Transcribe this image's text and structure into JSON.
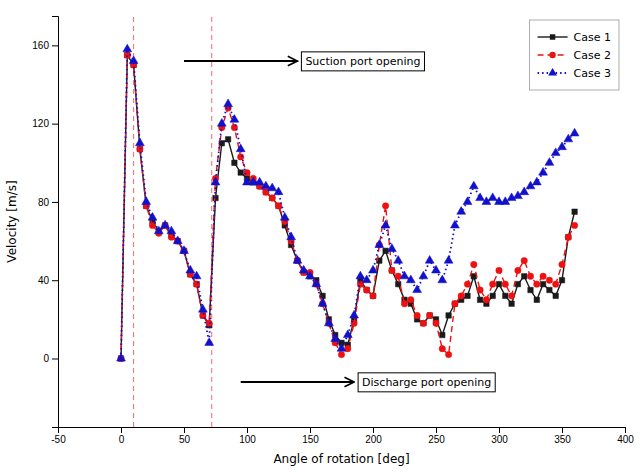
{
  "chart_data": {
    "type": "line",
    "x": [
      0,
      5,
      10,
      15,
      20,
      25,
      30,
      35,
      40,
      45,
      50,
      55,
      60,
      65,
      70,
      75,
      80,
      85,
      90,
      95,
      100,
      105,
      110,
      115,
      120,
      125,
      130,
      135,
      140,
      145,
      150,
      155,
      160,
      165,
      170,
      175,
      180,
      185,
      190,
      195,
      200,
      205,
      210,
      215,
      220,
      225,
      230,
      235,
      240,
      245,
      250,
      255,
      260,
      265,
      270,
      275,
      280,
      285,
      290,
      295,
      300,
      305,
      310,
      315,
      320,
      325,
      330,
      335,
      340,
      345,
      350,
      355,
      360
    ],
    "series": [
      {
        "name": "Case 1",
        "color": "#1a1a1a",
        "line_style": "solid",
        "marker": "square",
        "values": [
          0,
          155,
          150,
          107,
          78,
          70,
          65,
          68,
          63,
          60,
          55,
          43,
          38,
          22,
          17,
          82,
          110,
          112,
          100,
          95,
          92,
          90,
          88,
          85,
          82,
          78,
          68,
          58,
          50,
          44,
          42,
          40,
          32,
          20,
          12,
          8,
          7,
          20,
          40,
          35,
          32,
          50,
          55,
          45,
          38,
          30,
          28,
          20,
          18,
          22,
          20,
          12,
          22,
          28,
          30,
          32,
          42,
          30,
          28,
          32,
          38,
          32,
          28,
          38,
          42,
          35,
          30,
          38,
          35,
          32,
          40,
          62,
          75
        ]
      },
      {
        "name": "Case 2",
        "color": "#ee1111",
        "line_style": "dashed",
        "marker": "circle",
        "values": [
          0,
          155,
          150,
          107,
          78,
          68,
          64,
          68,
          62,
          60,
          55,
          43,
          38,
          22,
          18,
          92,
          118,
          128,
          118,
          103,
          95,
          92,
          88,
          85,
          82,
          78,
          70,
          60,
          50,
          44,
          44,
          38,
          28,
          18,
          8,
          2,
          5,
          18,
          38,
          35,
          32,
          58,
          78,
          45,
          42,
          28,
          30,
          22,
          18,
          22,
          18,
          5,
          2,
          28,
          32,
          38,
          48,
          35,
          30,
          38,
          45,
          38,
          32,
          45,
          50,
          42,
          38,
          42,
          40,
          38,
          48,
          62,
          68
        ]
      },
      {
        "name": "Case 3",
        "color": "#1111cc",
        "line_style": "dotted",
        "marker": "triangle",
        "values": [
          0,
          158,
          152,
          110,
          80,
          72,
          65,
          68,
          65,
          60,
          55,
          45,
          42,
          25,
          8,
          90,
          120,
          130,
          122,
          107,
          90,
          90,
          90,
          88,
          87,
          85,
          72,
          62,
          50,
          45,
          42,
          38,
          28,
          18,
          10,
          5,
          12,
          22,
          42,
          40,
          45,
          58,
          68,
          56,
          50,
          42,
          40,
          35,
          42,
          50,
          45,
          40,
          50,
          68,
          75,
          80,
          88,
          82,
          80,
          82,
          80,
          80,
          82,
          83,
          85,
          88,
          90,
          95,
          100,
          105,
          108,
          112,
          115
        ]
      }
    ],
    "vlines": [
      {
        "x": 10,
        "color": "#ff6666"
      },
      {
        "x": 72,
        "color": "#ff6666"
      }
    ],
    "annotations": [
      {
        "text": "Suction port opening",
        "x_start": 50,
        "x_end": 140,
        "y": 152
      },
      {
        "text": "Discharge port opening",
        "x_start": 95,
        "x_end": 185,
        "y": -12
      }
    ],
    "xlabel": "Angle of rotation [deg]",
    "ylabel": "Velocity [m/s]",
    "xlim": [
      -50,
      400
    ],
    "ylim": [
      -35,
      175
    ],
    "xticks": [
      -50,
      0,
      50,
      100,
      150,
      200,
      250,
      300,
      350,
      400
    ],
    "yticks": [
      0,
      40,
      80,
      120,
      160
    ],
    "grid": false,
    "legend": "upper-right"
  }
}
